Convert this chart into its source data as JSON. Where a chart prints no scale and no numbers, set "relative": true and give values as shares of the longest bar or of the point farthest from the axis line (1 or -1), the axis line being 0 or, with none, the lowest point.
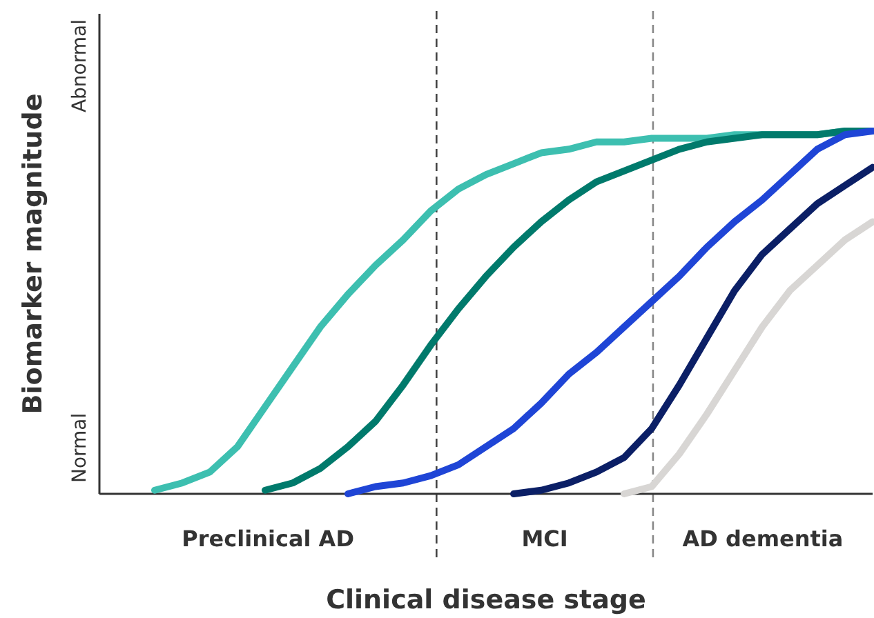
{
  "chart_data": {
    "type": "line",
    "relative": true,
    "xlabel": "Clinical disease stage",
    "ylabel": "Biomarker magnitude",
    "marker": "none",
    "line_style": "solid",
    "categories": [
      null,
      null,
      null,
      null,
      null,
      null,
      null,
      null,
      null,
      null,
      null,
      null,
      null,
      null,
      null,
      null,
      null,
      null,
      null,
      null,
      null,
      null,
      null,
      null,
      null,
      null,
      null,
      null,
      null
    ],
    "series": [
      {
        "color": "#3dbfb0",
        "values": [
          null,
          null,
          0.01,
          0.03,
          0.06,
          0.13,
          0.24,
          0.35,
          0.46,
          0.55,
          0.63,
          0.7,
          0.78,
          0.84,
          0.88,
          0.91,
          0.94,
          0.95,
          0.97,
          0.97,
          0.98,
          0.98,
          0.98,
          0.99,
          0.99,
          0.99,
          0.99,
          1.0,
          1.0
        ]
      },
      {
        "color": "#007a6c",
        "values": [
          null,
          null,
          null,
          null,
          null,
          null,
          0.01,
          0.03,
          0.07,
          0.13,
          0.2,
          0.3,
          0.41,
          0.51,
          0.6,
          0.68,
          0.75,
          0.81,
          0.86,
          0.89,
          0.92,
          0.95,
          0.97,
          0.98,
          0.99,
          0.99,
          0.99,
          1.0,
          1.0
        ]
      },
      {
        "color": "#1f45d6",
        "values": [
          null,
          null,
          null,
          null,
          null,
          null,
          null,
          null,
          null,
          0.0,
          0.02,
          0.03,
          0.05,
          0.08,
          0.13,
          0.18,
          0.25,
          0.33,
          0.39,
          0.46,
          0.53,
          0.6,
          0.68,
          0.75,
          0.81,
          0.88,
          0.95,
          0.99,
          1.0
        ]
      },
      {
        "color": "#0b1f66",
        "values": [
          null,
          null,
          null,
          null,
          null,
          null,
          null,
          null,
          null,
          null,
          null,
          null,
          null,
          null,
          null,
          0.0,
          0.01,
          0.03,
          0.06,
          0.1,
          0.18,
          0.3,
          0.43,
          0.56,
          0.66,
          0.73,
          0.8,
          0.85,
          0.9
        ]
      },
      {
        "color": "#d8d6d4",
        "values": [
          null,
          null,
          null,
          null,
          null,
          null,
          null,
          null,
          null,
          null,
          null,
          null,
          null,
          null,
          null,
          null,
          null,
          null,
          null,
          0.0,
          0.02,
          0.11,
          0.22,
          0.34,
          0.46,
          0.56,
          0.63,
          0.7,
          0.75
        ]
      }
    ],
    "annotations": [
      "Normal",
      "Abnormal",
      "Preclinical AD",
      "MCI",
      "AD dementia"
    ]
  }
}
